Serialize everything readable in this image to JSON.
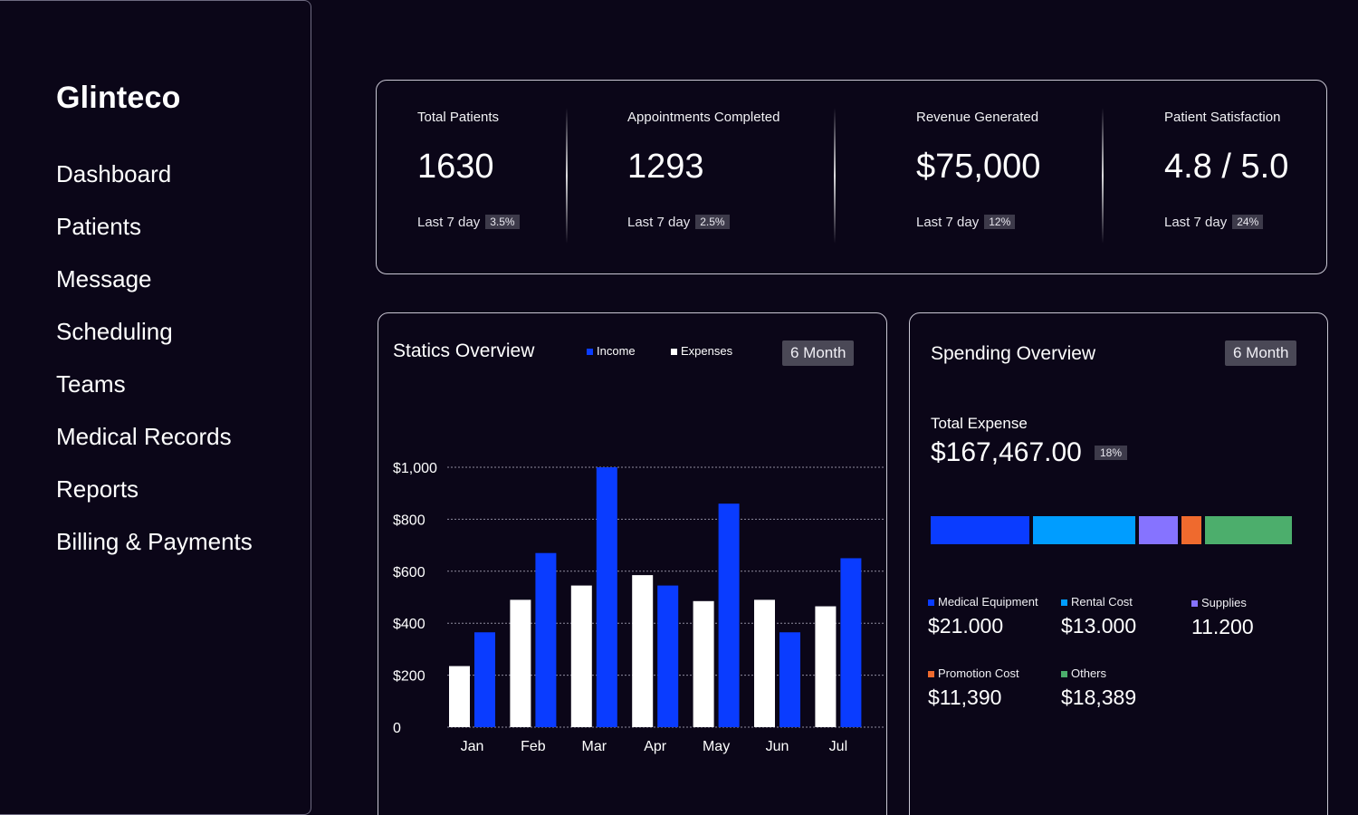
{
  "brand": "Glinteco",
  "nav": [
    "Dashboard",
    "Patients",
    "Message",
    "Scheduling",
    "Teams",
    "Medical Records",
    "Reports",
    "Billing & Payments"
  ],
  "kpis": [
    {
      "label": "Total Patients",
      "value": "1630",
      "period": "Last 7 day",
      "change": "3.5%"
    },
    {
      "label": "Appointments Completed",
      "value": "1293",
      "period": "Last 7 day",
      "change": "2.5%"
    },
    {
      "label": "Revenue Generated",
      "value": "$75,000",
      "period": "Last 7 day",
      "change": "12%"
    },
    {
      "label": "Patient Satisfaction",
      "value": "4.8 / 5.0",
      "period": "Last 7 day",
      "change": "24%"
    }
  ],
  "statics": {
    "title": "Statics Overview",
    "legend_income": "Income",
    "legend_expenses": "Expenses",
    "period_button": "6 Month"
  },
  "spending": {
    "title": "Spending Overview",
    "period_button": "6 Month",
    "total_label": "Total Expense",
    "total_value": "$167,467.00",
    "total_change": "18%",
    "categories": [
      {
        "name": "Medical Equipment",
        "value": "$21.000",
        "color": "#0a3cff"
      },
      {
        "name": "Rental Cost",
        "value": "$13.000",
        "color": "#009dff"
      },
      {
        "name": "Supplies",
        "value": "11.200",
        "color": "#8673ff"
      },
      {
        "name": "Promotion Cost",
        "value": "$11,390",
        "color": "#ef6a2e"
      },
      {
        "name": "Others",
        "value": "$18,389",
        "color": "#4cae6c"
      }
    ],
    "bar_shares": [
      0.28,
      0.29,
      0.11,
      0.055,
      0.245
    ]
  },
  "colors": {
    "income": "#0a3cff",
    "expenses": "#ffffff",
    "background": "#0b0618"
  },
  "chart_data": {
    "type": "bar",
    "categories": [
      "Jan",
      "Feb",
      "Mar",
      "Apr",
      "May",
      "Jun",
      "Jul"
    ],
    "series": [
      {
        "name": "Expenses",
        "values": [
          235,
          490,
          545,
          585,
          485,
          490,
          465
        ]
      },
      {
        "name": "Income",
        "values": [
          365,
          670,
          1000,
          545,
          860,
          365,
          650
        ]
      }
    ],
    "yticks": [
      "0",
      "$200",
      "$400",
      "$600",
      "$800",
      "$1,000"
    ],
    "ylim": [
      0,
      1000
    ],
    "grid": true
  }
}
